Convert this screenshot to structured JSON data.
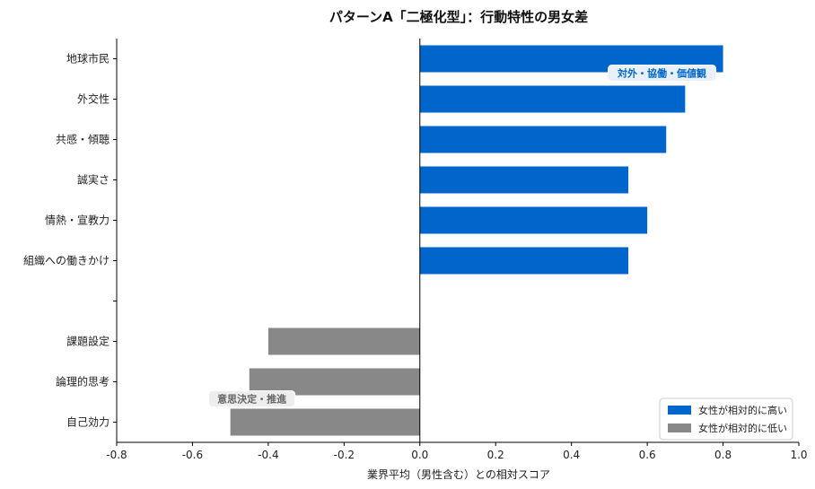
{
  "chart_data": {
    "type": "bar",
    "orientation": "horizontal",
    "title": "パターンA「二極化型」：行動特性の男女差",
    "xlabel": "業界平均（男性含む）との相対スコア",
    "ylabel": "",
    "xlim": [
      -0.8,
      1.0
    ],
    "xticks": [
      "-0.8",
      "-0.6",
      "-0.4",
      "-0.2",
      "0.0",
      "0.2",
      "0.4",
      "0.6",
      "0.8",
      "1.0"
    ],
    "categories": [
      "地球市民",
      "外交性",
      "共感・傾聴",
      "誠実さ",
      "情熱・宣教力",
      "組織への働きかけ",
      "",
      "課題設定",
      "論理的思考",
      "自己効力"
    ],
    "values": [
      0.8,
      0.7,
      0.65,
      0.55,
      0.6,
      0.55,
      null,
      -0.4,
      -0.45,
      -0.5
    ],
    "series": [
      {
        "name": "女性が相対的に高い",
        "color": "#0066cc"
      },
      {
        "name": "女性が相対的に低い",
        "color": "#888888"
      }
    ],
    "annotations": [
      {
        "text": "対外・協働・価値観",
        "color": "#0066cc",
        "group": "high"
      },
      {
        "text": "意思決定・推進",
        "color": "#666666",
        "group": "low"
      }
    ],
    "legend_position": "lower-right",
    "grid": false
  }
}
